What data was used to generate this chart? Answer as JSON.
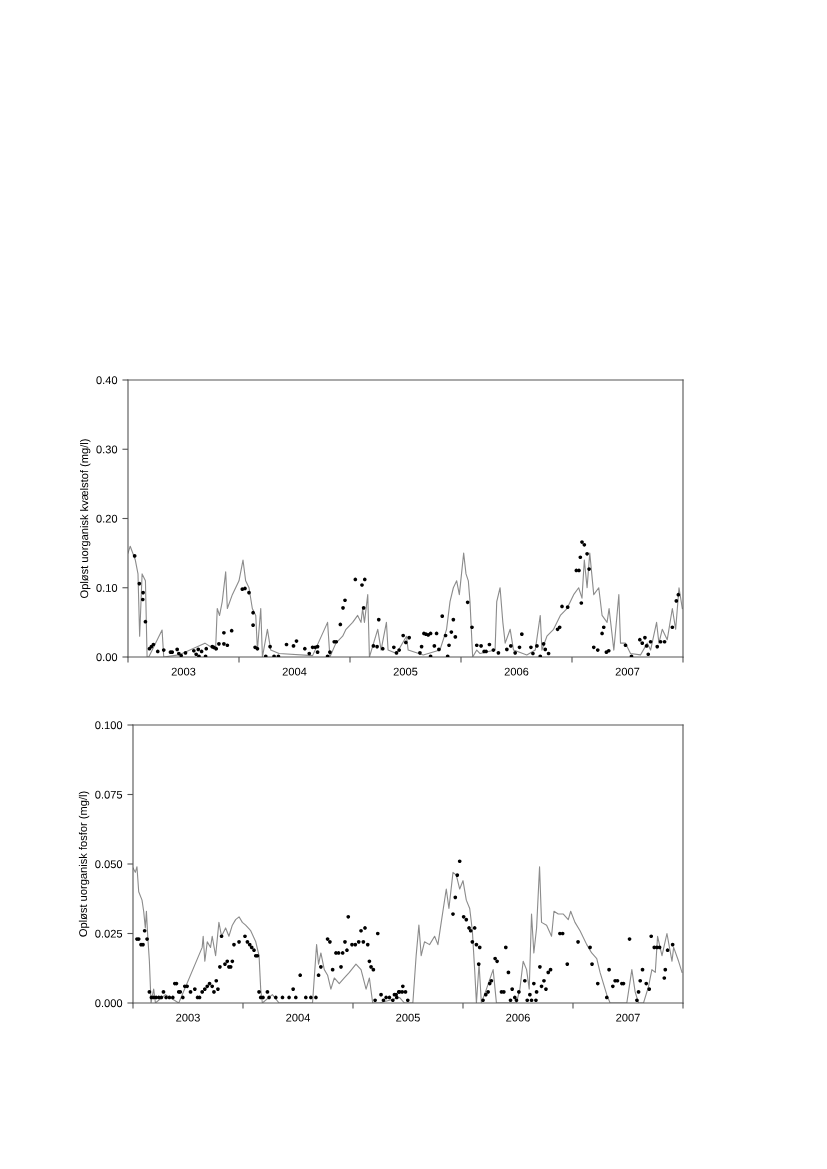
{
  "chart_data": [
    {
      "type": "line",
      "ylabel": "Opløst uorganisk kvælstof (mg/l)",
      "xlim": [
        2003,
        2008
      ],
      "ylim": [
        0,
        0.4
      ],
      "xticks": [
        {
          "value": 2003,
          "label": null
        },
        {
          "value": 2003.5,
          "label": "2003"
        },
        {
          "value": 2004,
          "label": null
        },
        {
          "value": 2004.5,
          "label": "2004"
        },
        {
          "value": 2005,
          "label": null
        },
        {
          "value": 2005.5,
          "label": "2005"
        },
        {
          "value": 2006,
          "label": null
        },
        {
          "value": 2006.5,
          "label": "2006"
        },
        {
          "value": 2007,
          "label": null
        },
        {
          "value": 2007.5,
          "label": "2007"
        },
        {
          "value": 2008,
          "label": null
        }
      ],
      "yticks": [
        {
          "value": 0,
          "label": "0.00"
        },
        {
          "value": 0.1,
          "label": "0.10"
        },
        {
          "value": 0.2,
          "label": "0.20"
        },
        {
          "value": 0.3,
          "label": "0.30"
        },
        {
          "value": 0.4,
          "label": "0.40"
        }
      ],
      "grid": false,
      "legend": false,
      "series": [
        {
          "color": "#8c8c8c",
          "marker": "none",
          "line_style": "solid",
          "x": [
            2003.0,
            2003.02,
            2003.066,
            2003.09,
            2003.105,
            2003.127,
            2003.157,
            2003.172,
            2003.187,
            2003.307,
            2003.322,
            2003.458,
            2003.693,
            2003.789,
            2003.804,
            2003.825,
            2003.849,
            2003.88,
            2003.895,
            2003.94,
            2004.0,
            2004.036,
            2004.06,
            2004.09,
            2004.12,
            2004.151,
            2004.166,
            2004.196,
            2004.211,
            2004.256,
            2004.286,
            2004.361,
            2004.663,
            2004.798,
            2004.819,
            2004.873,
            2004.934,
            2004.964,
            2005.024,
            2005.069,
            2005.099,
            2005.114,
            2005.13,
            2005.16,
            2005.175,
            2005.25,
            2005.28,
            2005.328,
            2005.343,
            2005.419,
            2005.509,
            2005.524,
            2005.66,
            2005.81,
            2005.87,
            2005.901,
            2005.931,
            2005.961,
            2005.985,
            2006.024,
            2006.045,
            2006.066,
            2006.081,
            2006.105,
            2006.142,
            2006.172,
            2006.307,
            2006.322,
            2006.352,
            2006.377,
            2006.398,
            2006.443,
            2006.473,
            2006.593,
            2006.669,
            2006.714,
            2006.729,
            2006.774,
            2006.834,
            2006.895,
            2006.955,
            2007.015,
            2007.06,
            2007.09,
            2007.111,
            2007.136,
            2007.16,
            2007.196,
            2007.241,
            2007.271,
            2007.316,
            2007.334,
            2007.377,
            2007.422,
            2007.437,
            2007.482,
            2007.527,
            2007.617,
            2007.678,
            2007.708,
            2007.762,
            2007.783,
            2007.813,
            2007.858,
            2007.904,
            2007.934,
            2007.964,
            2007.994
          ],
          "values": [
            0.15,
            0.16,
            0.14,
            0.12,
            0.03,
            0.12,
            0.11,
            0.0,
            0.0,
            0.039,
            0.0,
            0.003,
            0.02,
            0.01,
            0.07,
            0.06,
            0.08,
            0.123,
            0.07,
            0.09,
            0.11,
            0.14,
            0.11,
            0.1,
            0.07,
            0.06,
            0.01,
            0.07,
            0.0,
            0.04,
            0.01,
            0.005,
            0.002,
            0.05,
            0.0,
            0.02,
            0.03,
            0.04,
            0.05,
            0.06,
            0.05,
            0.07,
            0.05,
            0.09,
            0.0,
            0.04,
            0.01,
            0.05,
            0.01,
            0.005,
            0.03,
            0.01,
            0.003,
            0.01,
            0.04,
            0.08,
            0.1,
            0.11,
            0.09,
            0.15,
            0.12,
            0.11,
            0.08,
            0.0,
            0.01,
            0.005,
            0.01,
            0.08,
            0.1,
            0.05,
            0.02,
            0.04,
            0.01,
            0.003,
            0.01,
            0.06,
            0.01,
            0.03,
            0.04,
            0.06,
            0.07,
            0.09,
            0.1,
            0.085,
            0.14,
            0.1,
            0.15,
            0.09,
            0.1,
            0.06,
            0.05,
            0.07,
            0.01,
            0.09,
            0.02,
            0.02,
            0.005,
            0.003,
            0.02,
            0.01,
            0.05,
            0.02,
            0.04,
            0.025,
            0.07,
            0.04,
            0.1,
            0.07
          ]
        },
        {
          "type": "scatter",
          "color": "#000000",
          "marker": "circle",
          "x": [
            2003.06,
            2003.102,
            2003.136,
            2003.133,
            2003.157,
            2003.193,
            2003.211,
            2003.229,
            2003.268,
            2003.322,
            2003.383,
            2003.398,
            2003.443,
            2003.458,
            2003.479,
            2003.518,
            2003.593,
            2003.614,
            2003.633,
            2003.639,
            2003.663,
            2003.705,
            2003.699,
            2003.759,
            2003.774,
            2003.795,
            2003.819,
            2003.864,
            2003.864,
            2003.895,
            2003.934,
            2004.03,
            2004.054,
            2004.09,
            2004.127,
            2004.127,
            2004.145,
            2004.166,
            2004.241,
            2004.28,
            2004.316,
            2004.355,
            2004.428,
            2004.491,
            2004.518,
            2004.593,
            2004.633,
            2004.663,
            2004.687,
            2004.708,
            2004.708,
            2004.798,
            2004.819,
            2004.858,
            2004.876,
            2004.913,
            2004.937,
            2004.955,
            2005.048,
            2005.108,
            2005.133,
            2005.123,
            2005.211,
            2005.244,
            2005.259,
            2005.295,
            2005.395,
            2005.419,
            2005.443,
            2005.479,
            2005.503,
            2005.533,
            2005.63,
            2005.645,
            2005.666,
            2005.684,
            2005.705,
            2005.726,
            2005.726,
            2005.76,
            2005.78,
            2005.801,
            2005.831,
            2005.861,
            2005.88,
            2005.892,
            2005.913,
            2005.931,
            2005.949,
            2006.06,
            2006.099,
            2006.142,
            2006.181,
            2006.208,
            2006.226,
            2006.256,
            2006.292,
            2006.337,
            2006.413,
            2006.449,
            2006.488,
            2006.527,
            2006.548,
            2006.63,
            2006.648,
            2006.684,
            2006.714,
            2006.744,
            2006.759,
            2006.789,
            2006.87,
            2006.889,
            2006.91,
            2006.961,
            2007.039,
            2007.063,
            2007.075,
            2007.09,
            2007.111,
            2007.084,
            2007.136,
            2007.154,
            2007.196,
            2007.232,
            2007.271,
            2007.286,
            2007.31,
            2007.331,
            2007.482,
            2007.536,
            2007.611,
            2007.633,
            2007.657,
            2007.672,
            2007.687,
            2007.708,
            2007.768,
            2007.798,
            2007.834,
            2007.904,
            2007.94,
            2007.958
          ],
          "values": [
            0.146,
            0.106,
            0.093,
            0.083,
            0.051,
            0.012,
            0.015,
            0.018,
            0.008,
            0.01,
            0.007,
            0.007,
            0.011,
            0.005,
            0.002,
            0.006,
            0.009,
            0.004,
            0.011,
            0.001,
            0.008,
            0.012,
            0.001,
            0.015,
            0.014,
            0.012,
            0.019,
            0.019,
            0.035,
            0.017,
            0.038,
            0.098,
            0.099,
            0.093,
            0.064,
            0.046,
            0.014,
            0.012,
            0.001,
            0.015,
            0.001,
            0.001,
            0.018,
            0.016,
            0.023,
            0.012,
            0.005,
            0.014,
            0.014,
            0.015,
            0.007,
            0.001,
            0.007,
            0.022,
            0.022,
            0.047,
            0.071,
            0.082,
            0.112,
            0.104,
            0.112,
            0.071,
            0.016,
            0.015,
            0.054,
            0.012,
            0.014,
            0.006,
            0.01,
            0.031,
            0.021,
            0.028,
            0.006,
            0.015,
            0.034,
            0.033,
            0.032,
            0.034,
            0.001,
            0.016,
            0.034,
            0.011,
            0.059,
            0.031,
            0.001,
            0.017,
            0.036,
            0.054,
            0.029,
            0.079,
            0.043,
            0.017,
            0.016,
            0.008,
            0.008,
            0.018,
            0.01,
            0.006,
            0.011,
            0.016,
            0.006,
            0.014,
            0.033,
            0.014,
            0.005,
            0.016,
            0.001,
            0.019,
            0.011,
            0.005,
            0.04,
            0.043,
            0.073,
            0.072,
            0.125,
            0.125,
            0.144,
            0.166,
            0.162,
            0.078,
            0.149,
            0.127,
            0.014,
            0.01,
            0.034,
            0.043,
            0.007,
            0.009,
            0.017,
            0.001,
            0.025,
            0.02,
            0.028,
            0.016,
            0.004,
            0.022,
            0.015,
            0.022,
            0.022,
            0.043,
            0.081,
            0.09
          ]
        }
      ]
    },
    {
      "type": "line",
      "ylabel": "Opløst uorganisk fosfor (mg/l)",
      "xlim": [
        2003,
        2008
      ],
      "ylim": [
        0,
        0.1
      ],
      "xticks": [
        {
          "value": 2003,
          "label": null
        },
        {
          "value": 2003.5,
          "label": "2003"
        },
        {
          "value": 2004,
          "label": null
        },
        {
          "value": 2004.5,
          "label": "2004"
        },
        {
          "value": 2005,
          "label": null
        },
        {
          "value": 2005.5,
          "label": "2005"
        },
        {
          "value": 2006,
          "label": null
        },
        {
          "value": 2006.5,
          "label": "2006"
        },
        {
          "value": 2007,
          "label": null
        },
        {
          "value": 2007.5,
          "label": "2007"
        },
        {
          "value": 2008,
          "label": null
        }
      ],
      "yticks": [
        {
          "value": 0,
          "label": "0.000"
        },
        {
          "value": 0.025,
          "label": "0.025"
        },
        {
          "value": 0.05,
          "label": "0.050"
        },
        {
          "value": 0.075,
          "label": "0.075"
        },
        {
          "value": 0.1,
          "label": "0.100"
        }
      ],
      "grid": false,
      "legend": false,
      "series": [
        {
          "color": "#8c8c8c",
          "marker": "none",
          "line_style": "solid",
          "x": [
            2003.0,
            2003.021,
            2003.036,
            2003.052,
            2003.082,
            2003.097,
            2003.112,
            2003.122,
            2003.134,
            2003.149,
            2003.164,
            2003.188,
            2003.204,
            2003.295,
            2003.416,
            2003.629,
            2003.638,
            2003.653,
            2003.675,
            2003.705,
            2003.72,
            2003.751,
            2003.781,
            2003.805,
            2003.842,
            2003.872,
            2003.903,
            2003.933,
            2003.964,
            2003.994,
            2004.024,
            2004.07,
            2004.116,
            2004.146,
            2004.161,
            2004.176,
            2004.267,
            2004.328,
            2004.632,
            2004.669,
            2004.687,
            2004.708,
            2004.739,
            2004.769,
            2004.799,
            2004.83,
            2004.875,
            2004.921,
            2004.967,
            2005.027,
            2005.073,
            2005.119,
            2005.149,
            2005.179,
            2005.24,
            2005.422,
            2005.468,
            2005.544,
            2005.574,
            2005.599,
            2005.62,
            2005.65,
            2005.696,
            2005.742,
            2005.772,
            2005.802,
            2005.848,
            2005.872,
            2005.909,
            2005.939,
            2005.97,
            2006.0,
            2006.03,
            2006.061,
            2006.085,
            2006.106,
            2006.122,
            2006.146,
            2006.167,
            2006.213,
            2006.274,
            2006.304,
            2006.486,
            2006.517,
            2006.547,
            2006.578,
            2006.602,
            2006.623,
            2006.644,
            2006.669,
            2006.696,
            2006.714,
            2006.76,
            2006.805,
            2006.827,
            2006.866,
            2006.912,
            2006.957,
            2006.979,
            2007.018,
            2007.064,
            2007.125,
            2007.17,
            2007.216,
            2007.246,
            2007.307,
            2007.337,
            2007.489,
            2007.535,
            2007.565,
            2007.596,
            2007.641,
            2007.687,
            2007.717,
            2007.748,
            2007.769,
            2007.809,
            2007.854,
            2007.9,
            2007.915,
            2007.96,
            2007.991
          ],
          "values": [
            0.0486,
            0.047,
            0.049,
            0.04,
            0.037,
            0.033,
            0.027,
            0.033,
            0.024,
            0.015,
            0.0,
            0.005,
            0.0,
            0.003,
            0.0,
            0.02,
            0.024,
            0.015,
            0.022,
            0.02,
            0.024,
            0.017,
            0.029,
            0.024,
            0.027,
            0.024,
            0.028,
            0.03,
            0.031,
            0.029,
            0.028,
            0.026,
            0.022,
            0.017,
            0.005,
            0.0,
            0.003,
            0.0,
            0.0,
            0.021,
            0.014,
            0.018,
            0.012,
            0.01,
            0.005,
            0.009,
            0.007,
            0.009,
            0.011,
            0.014,
            0.012,
            0.005,
            0.009,
            0.0,
            0.0,
            0.002,
            0.0,
            0.0,
            0.017,
            0.028,
            0.017,
            0.022,
            0.021,
            0.024,
            0.021,
            0.029,
            0.041,
            0.034,
            0.047,
            0.046,
            0.041,
            0.044,
            0.037,
            0.034,
            0.026,
            0.012,
            0.0,
            0.014,
            0.0,
            0.005,
            0.012,
            0.0,
            0.0,
            0.005,
            0.015,
            0.012,
            0.005,
            0.032,
            0.018,
            0.027,
            0.049,
            0.029,
            0.028,
            0.024,
            0.033,
            0.032,
            0.032,
            0.03,
            0.033,
            0.029,
            0.026,
            0.021,
            0.018,
            0.016,
            0.011,
            0.003,
            0.0,
            0.0,
            0.012,
            0.004,
            0.0,
            0.0,
            0.006,
            0.012,
            0.011,
            0.024,
            0.017,
            0.025,
            0.015,
            0.02,
            0.015,
            0.011
          ]
        },
        {
          "type": "scatter",
          "color": "#000000",
          "marker": "circle",
          "x": [
            2003.036,
            2003.052,
            2003.073,
            2003.091,
            2003.106,
            2003.128,
            2003.149,
            2003.167,
            2003.188,
            2003.21,
            2003.234,
            2003.258,
            2003.277,
            2003.301,
            2003.331,
            2003.362,
            2003.38,
            2003.395,
            2003.416,
            2003.429,
            2003.453,
            2003.471,
            2003.492,
            2003.523,
            2003.562,
            2003.587,
            2003.605,
            2003.629,
            2003.653,
            2003.675,
            2003.696,
            2003.72,
            2003.736,
            2003.757,
            2003.772,
            2003.79,
            2003.805,
            2003.836,
            2003.857,
            2003.872,
            2003.888,
            2003.903,
            2003.918,
            2003.964,
            2004.018,
            2004.04,
            2004.061,
            2004.079,
            2004.1,
            2004.116,
            2004.131,
            2004.146,
            2004.161,
            2004.182,
            2004.222,
            2004.237,
            2004.298,
            2004.359,
            2004.419,
            2004.456,
            2004.48,
            2004.52,
            2004.571,
            2004.617,
            2004.663,
            2004.687,
            2004.708,
            2004.769,
            2004.79,
            2004.815,
            2004.845,
            2004.869,
            2004.891,
            2004.906,
            2004.927,
            2004.945,
            2004.957,
            2004.991,
            2005.021,
            2005.052,
            2005.073,
            2005.109,
            2005.094,
            2005.134,
            2005.149,
            2005.164,
            2005.185,
            2005.201,
            2005.225,
            2005.255,
            2005.277,
            2005.301,
            2005.331,
            2005.362,
            2005.392,
            2005.416,
            2005.377,
            2005.398,
            2005.422,
            2005.447,
            2005.453,
            2005.477,
            2005.498,
            2005.909,
            2005.93,
            2005.948,
            2005.97,
            2006.006,
            2006.03,
            2006.055,
            2006.07,
            2006.106,
            2006.085,
            2006.122,
            2006.152,
            2006.143,
            2006.182,
            2006.207,
            2006.228,
            2006.243,
            2006.258,
            2006.292,
            2006.31,
            2006.35,
            2006.371,
            2006.389,
            2006.413,
            2006.432,
            2006.447,
            2006.471,
            2006.486,
            2006.508,
            2006.562,
            2006.584,
            2006.608,
            2006.623,
            2006.644,
            2006.663,
            2006.669,
            2006.699,
            2006.714,
            2006.736,
            2006.754,
            2006.775,
            2006.796,
            2006.881,
            2006.906,
            2006.948,
            2007.046,
            2007.155,
            2007.173,
            2007.225,
            2007.307,
            2007.328,
            2007.362,
            2007.383,
            2007.404,
            2007.444,
            2007.459,
            2007.514,
            2007.581,
            2007.596,
            2007.611,
            2007.632,
            2007.666,
            2007.693,
            2007.711,
            2007.739,
            2007.763,
            2007.787,
            2007.83,
            2007.839,
            2007.86,
            2007.906
          ],
          "values": [
            0.023,
            0.023,
            0.021,
            0.021,
            0.026,
            0.023,
            0.004,
            0.002,
            0.002,
            0.002,
            0.002,
            0.002,
            0.004,
            0.002,
            0.002,
            0.002,
            0.007,
            0.007,
            0.004,
            0.004,
            0.002,
            0.006,
            0.006,
            0.004,
            0.005,
            0.002,
            0.002,
            0.004,
            0.005,
            0.006,
            0.007,
            0.006,
            0.004,
            0.008,
            0.005,
            0.013,
            0.024,
            0.014,
            0.015,
            0.013,
            0.013,
            0.015,
            0.021,
            0.022,
            0.024,
            0.022,
            0.021,
            0.02,
            0.019,
            0.017,
            0.017,
            0.004,
            0.002,
            0.002,
            0.004,
            0.002,
            0.002,
            0.002,
            0.002,
            0.005,
            0.002,
            0.01,
            0.002,
            0.002,
            0.002,
            0.01,
            0.013,
            0.023,
            0.022,
            0.012,
            0.018,
            0.018,
            0.013,
            0.018,
            0.022,
            0.019,
            0.031,
            0.021,
            0.021,
            0.022,
            0.026,
            0.027,
            0.022,
            0.021,
            0.015,
            0.013,
            0.012,
            0.001,
            0.025,
            0.003,
            0.001,
            0.002,
            0.002,
            0.001,
            0.003,
            0.004,
            0.003,
            0.002,
            0.004,
            0.004,
            0.006,
            0.004,
            0.001,
            0.032,
            0.038,
            0.046,
            0.051,
            0.031,
            0.03,
            0.027,
            0.026,
            0.027,
            0.022,
            0.021,
            0.02,
            0.014,
            0.001,
            0.003,
            0.004,
            0.007,
            0.008,
            0.016,
            0.015,
            0.004,
            0.004,
            0.02,
            0.011,
            0.001,
            0.005,
            0.002,
            0.001,
            0.004,
            0.008,
            0.001,
            0.003,
            0.001,
            0.007,
            0.001,
            0.004,
            0.013,
            0.006,
            0.008,
            0.005,
            0.011,
            0.012,
            0.025,
            0.025,
            0.014,
            0.022,
            0.02,
            0.014,
            0.007,
            0.002,
            0.012,
            0.006,
            0.008,
            0.008,
            0.007,
            0.007,
            0.023,
            0.001,
            0.004,
            0.008,
            0.012,
            0.007,
            0.005,
            0.024,
            0.02,
            0.02,
            0.02,
            0.009,
            0.012,
            0.019,
            0.021
          ]
        }
      ]
    }
  ]
}
